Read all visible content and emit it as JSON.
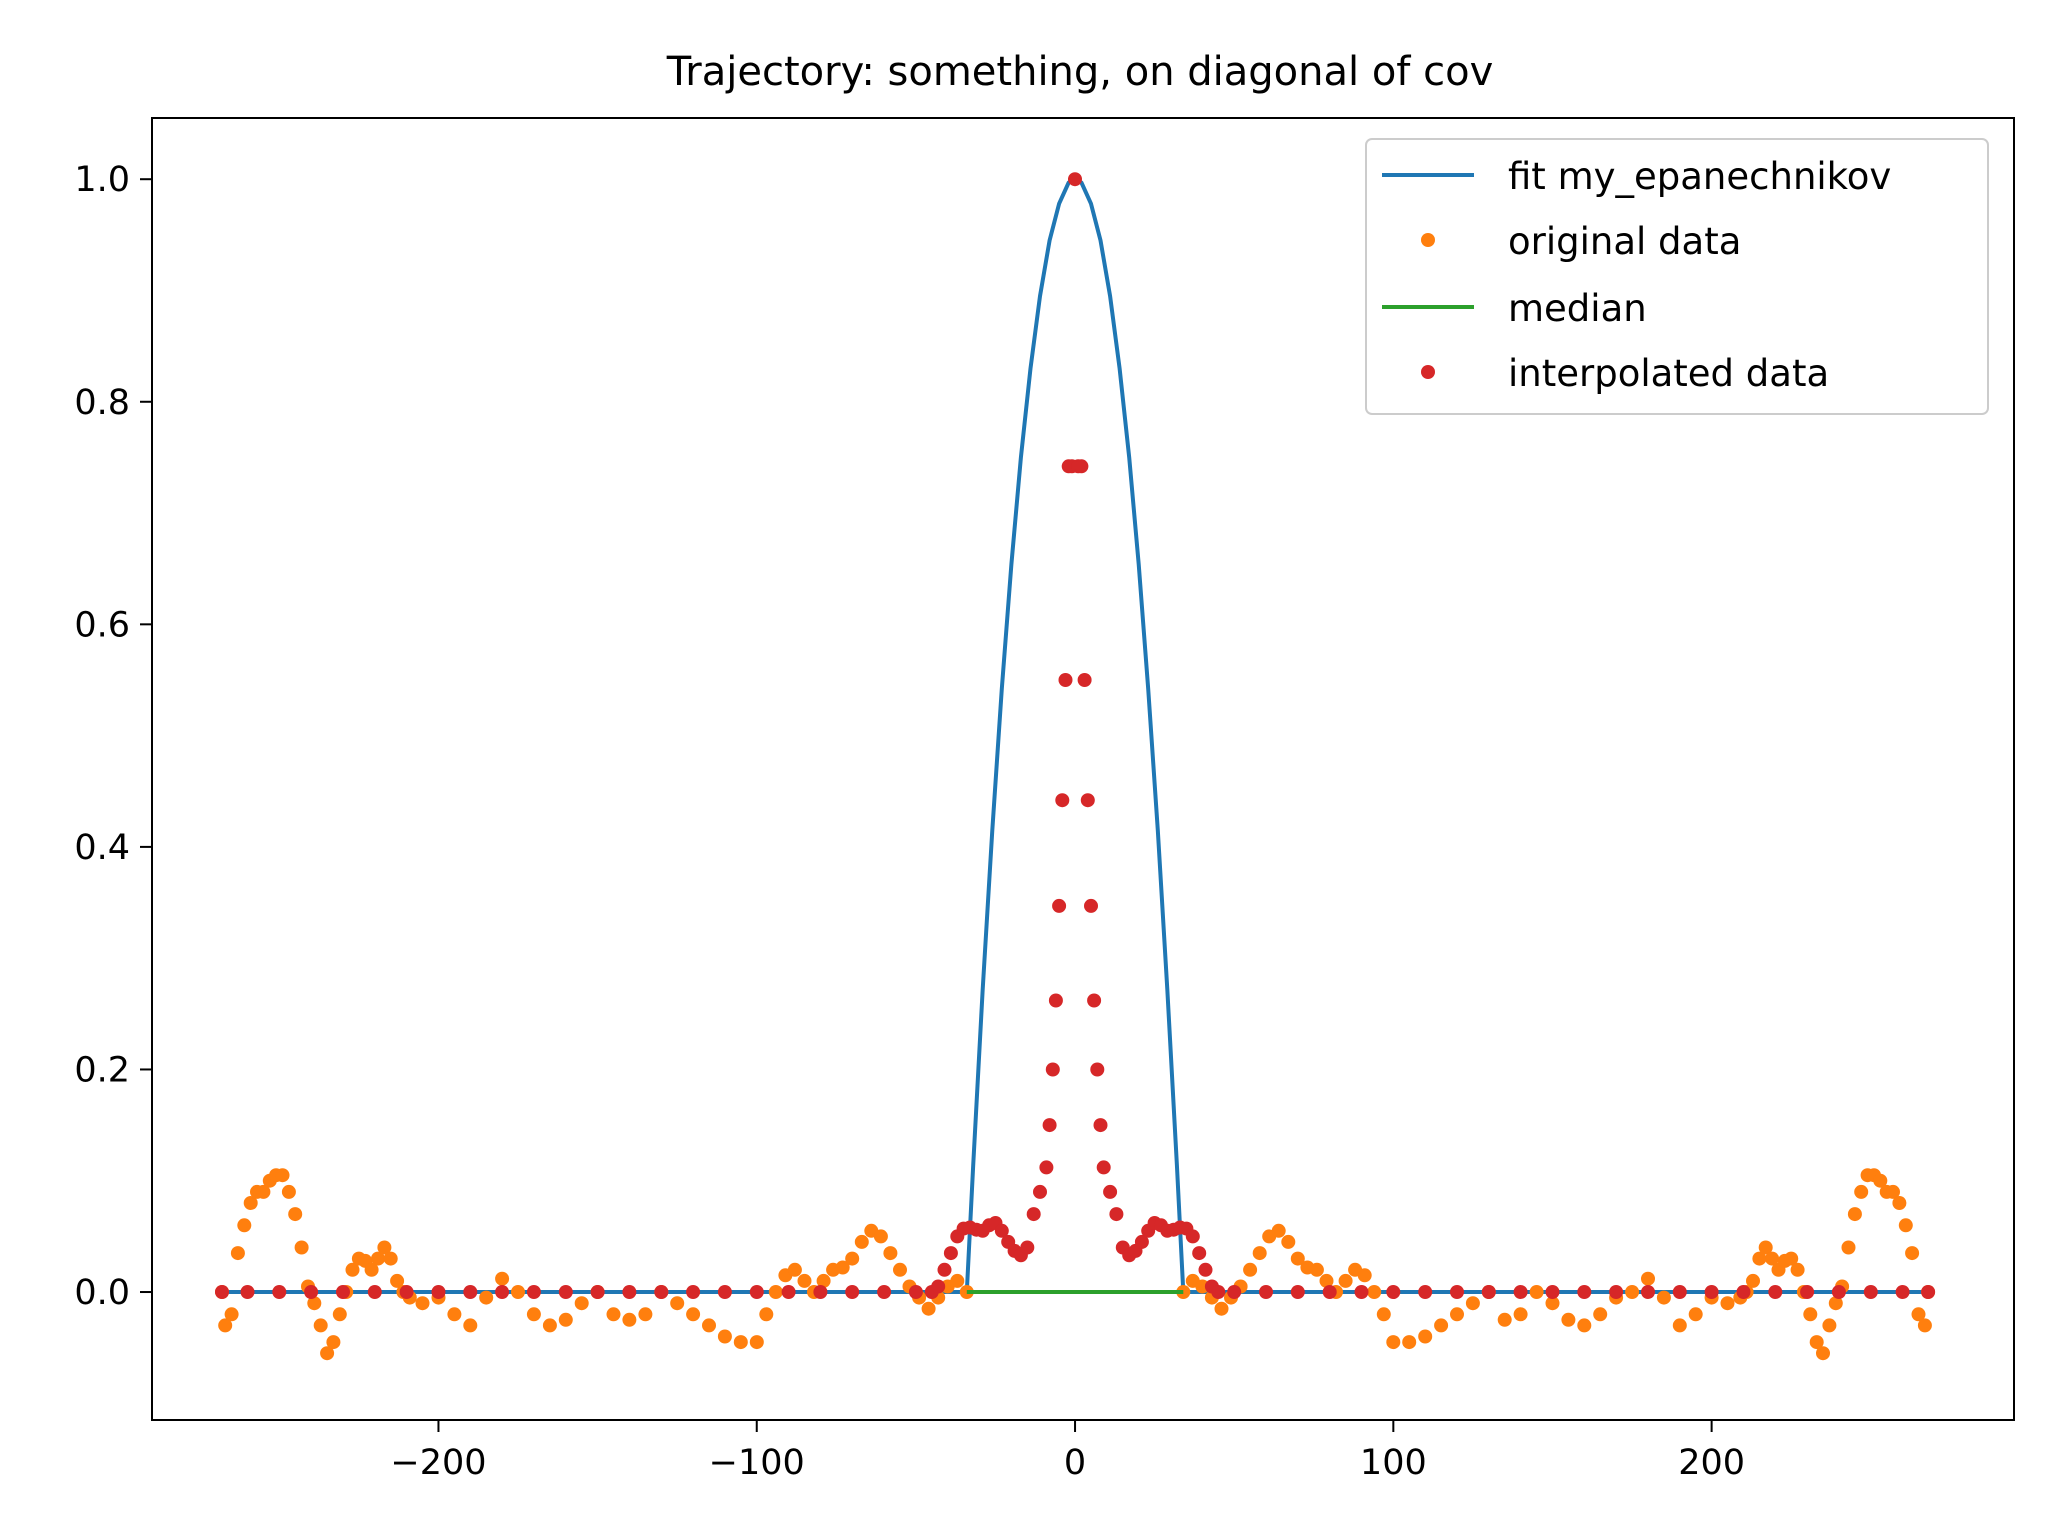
{
  "chart_data": {
    "type": "line",
    "title": "Trajectory: something, on diagonal of cov",
    "xlabel": "",
    "ylabel": "",
    "xlim": [
      -290,
      295
    ],
    "ylim": [
      -0.115,
      1.055
    ],
    "xticks": [
      -200,
      -100,
      0,
      100,
      200
    ],
    "xtick_labels": [
      "−200",
      "−100",
      "0",
      "100",
      "200"
    ],
    "yticks": [
      0.0,
      0.2,
      0.4,
      0.6,
      0.8,
      1.0
    ],
    "ytick_labels": [
      "0.0",
      "0.2",
      "0.4",
      "0.6",
      "0.8",
      "1.0"
    ],
    "grid": false,
    "legend_position": "top-right",
    "series": [
      {
        "name": "fit my_epanechnikov",
        "kind": "line",
        "color": "#1f77b4",
        "support": [
          -34,
          34
        ],
        "x": [
          -268,
          -34,
          -32,
          -29,
          -26,
          -23,
          -20,
          -17,
          -14,
          -11,
          -8,
          -5,
          -2,
          0,
          2,
          5,
          8,
          11,
          14,
          17,
          20,
          23,
          26,
          29,
          32,
          34,
          268
        ],
        "y": [
          0,
          0,
          0.114,
          0.272,
          0.415,
          0.542,
          0.654,
          0.75,
          0.83,
          0.895,
          0.945,
          0.978,
          0.997,
          1.0,
          0.997,
          0.978,
          0.945,
          0.895,
          0.83,
          0.75,
          0.654,
          0.542,
          0.415,
          0.272,
          0.114,
          0,
          0
        ]
      },
      {
        "name": "original data",
        "kind": "points",
        "color": "#ff7f0e",
        "x": [
          -268,
          -267,
          -265,
          -263,
          -261,
          -259,
          -257,
          -255,
          -253,
          -251,
          -249,
          -247,
          -245,
          -243,
          -241,
          -239,
          -237,
          -235,
          -233,
          -231,
          -229,
          -227,
          -225,
          -223,
          -221,
          -219,
          -217,
          -215,
          -213,
          -211,
          -209,
          -205,
          -200,
          -195,
          -190,
          -185,
          -180,
          -175,
          -170,
          -165,
          -160,
          -155,
          -150,
          -145,
          -140,
          -135,
          -130,
          -125,
          -120,
          -115,
          -110,
          -105,
          -100,
          -97,
          -94,
          -91,
          -88,
          -85,
          -82,
          -79,
          -76,
          -73,
          -70,
          -67,
          -64,
          -61,
          -58,
          -55,
          -52,
          -49,
          -46,
          -43,
          -40,
          -37,
          -34,
          34,
          37,
          40,
          43,
          46,
          49,
          52,
          55,
          58,
          61,
          64,
          67,
          70,
          73,
          76,
          79,
          82,
          85,
          88,
          91,
          94,
          97,
          100,
          105,
          110,
          115,
          120,
          125,
          130,
          135,
          140,
          145,
          150,
          155,
          160,
          165,
          170,
          175,
          180,
          185,
          190,
          195,
          200,
          205,
          209,
          211,
          213,
          215,
          217,
          219,
          221,
          223,
          225,
          227,
          229,
          231,
          233,
          235,
          237,
          239,
          241,
          243,
          245,
          247,
          249,
          251,
          253,
          255,
          257,
          259,
          261,
          263,
          265,
          267,
          268
        ],
        "y": [
          0.0,
          -0.03,
          -0.02,
          0.035,
          0.06,
          0.08,
          0.09,
          0.09,
          0.1,
          0.105,
          0.105,
          0.09,
          0.07,
          0.04,
          0.005,
          -0.01,
          -0.03,
          -0.055,
          -0.045,
          -0.02,
          0.0,
          0.02,
          0.03,
          0.028,
          0.02,
          0.03,
          0.04,
          0.03,
          0.01,
          0.0,
          -0.005,
          -0.01,
          -0.005,
          -0.02,
          -0.03,
          -0.005,
          0.012,
          0.0,
          -0.02,
          -0.03,
          -0.025,
          -0.01,
          0.0,
          -0.02,
          -0.025,
          -0.02,
          0.0,
          -0.01,
          -0.02,
          -0.03,
          -0.04,
          -0.045,
          -0.045,
          -0.02,
          0.0,
          0.015,
          0.02,
          0.01,
          0.0,
          0.01,
          0.02,
          0.022,
          0.03,
          0.045,
          0.055,
          0.05,
          0.035,
          0.02,
          0.005,
          -0.005,
          -0.015,
          -0.005,
          0.005,
          0.01,
          0.0,
          0.0,
          0.01,
          0.005,
          -0.005,
          -0.015,
          -0.005,
          0.005,
          0.02,
          0.035,
          0.05,
          0.055,
          0.045,
          0.03,
          0.022,
          0.02,
          0.01,
          0.0,
          0.01,
          0.02,
          0.015,
          0.0,
          -0.02,
          -0.045,
          -0.045,
          -0.04,
          -0.03,
          -0.02,
          -0.01,
          0.0,
          -0.025,
          -0.02,
          0.0,
          -0.01,
          -0.025,
          -0.03,
          -0.02,
          -0.005,
          0.0,
          0.012,
          -0.005,
          -0.03,
          -0.02,
          -0.005,
          -0.01,
          -0.005,
          0.0,
          0.01,
          0.03,
          0.04,
          0.03,
          0.02,
          0.028,
          0.03,
          0.02,
          0.0,
          -0.02,
          -0.045,
          -0.055,
          -0.03,
          -0.01,
          0.005,
          0.04,
          0.07,
          0.09,
          0.105,
          0.105,
          0.1,
          0.09,
          0.09,
          0.08,
          0.06,
          0.035,
          -0.02,
          -0.03,
          0.0
        ]
      },
      {
        "name": "median",
        "kind": "line",
        "color": "#2ca02c",
        "x": [
          -34,
          34
        ],
        "y": [
          0,
          0
        ]
      },
      {
        "name": "interpolated data",
        "kind": "points",
        "color": "#d62728",
        "x": [
          -268,
          -260,
          -250,
          -240,
          -230,
          -220,
          -210,
          -200,
          -190,
          -180,
          -170,
          -160,
          -150,
          -140,
          -130,
          -120,
          -110,
          -100,
          -90,
          -80,
          -70,
          -60,
          -50,
          -45,
          -43,
          -41,
          -39,
          -37,
          -35,
          -33,
          -31,
          -29,
          -27,
          -25,
          -23,
          -21,
          -19,
          -17,
          -15,
          -13,
          -11,
          -9,
          -8,
          -7,
          -6,
          -5,
          -4,
          -3,
          -2,
          -1,
          0,
          1,
          2,
          3,
          4,
          5,
          6,
          7,
          8,
          9,
          11,
          13,
          15,
          17,
          19,
          21,
          23,
          25,
          27,
          29,
          31,
          33,
          35,
          37,
          39,
          41,
          43,
          45,
          50,
          60,
          70,
          80,
          90,
          100,
          110,
          120,
          130,
          140,
          150,
          160,
          170,
          180,
          190,
          200,
          210,
          220,
          230,
          240,
          250,
          260,
          268
        ],
        "y": [
          0,
          0,
          0,
          0,
          0,
          0,
          0,
          0,
          0,
          0,
          0,
          0,
          0,
          0,
          0,
          0,
          0,
          0,
          0,
          0,
          0,
          0,
          0,
          0.0,
          0.005,
          0.02,
          0.035,
          0.05,
          0.057,
          0.058,
          0.056,
          0.055,
          0.06,
          0.062,
          0.055,
          0.045,
          0.037,
          0.033,
          0.04,
          0.07,
          0.09,
          0.112,
          0.15,
          0.2,
          0.262,
          0.347,
          0.442,
          0.55,
          0.742,
          0.742,
          1.0,
          0.742,
          0.742,
          0.55,
          0.442,
          0.347,
          0.262,
          0.2,
          0.15,
          0.112,
          0.09,
          0.07,
          0.04,
          0.033,
          0.037,
          0.045,
          0.055,
          0.062,
          0.06,
          0.055,
          0.056,
          0.058,
          0.057,
          0.05,
          0.035,
          0.02,
          0.005,
          0.0,
          0,
          0,
          0,
          0,
          0,
          0,
          0,
          0,
          0,
          0,
          0,
          0,
          0,
          0,
          0,
          0,
          0,
          0,
          0,
          0,
          0,
          0,
          0
        ]
      }
    ]
  },
  "legend": {
    "entries": [
      "fit my_epanechnikov",
      "original data",
      "median",
      "interpolated data"
    ]
  }
}
